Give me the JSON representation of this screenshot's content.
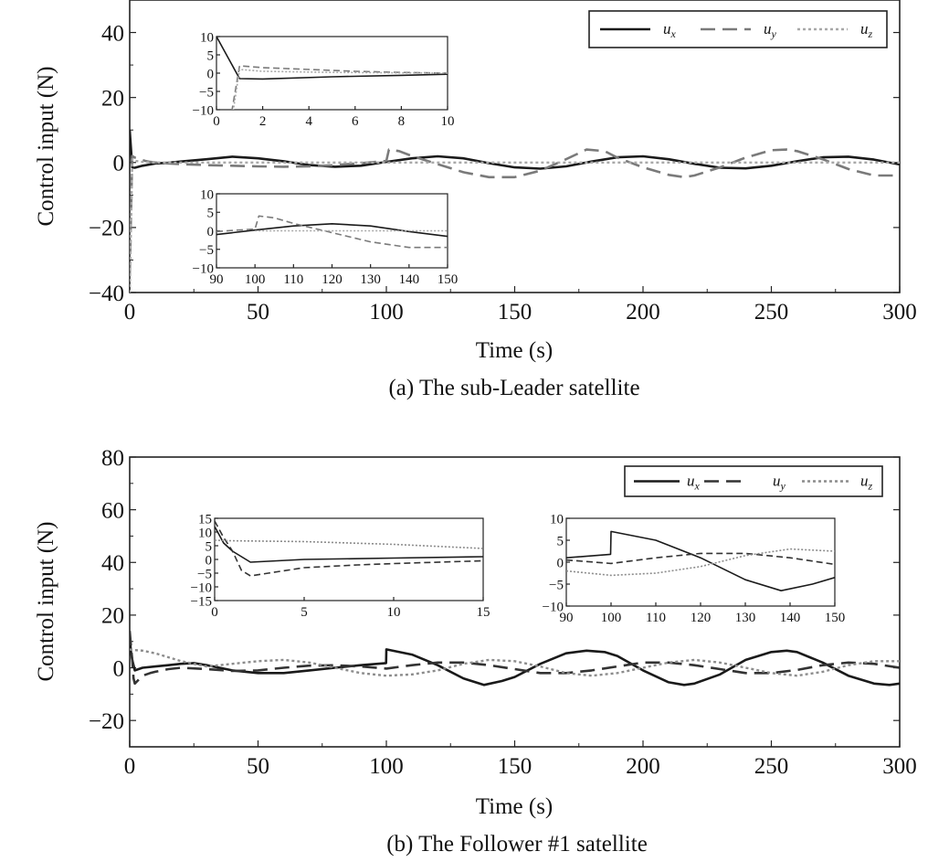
{
  "chart_data": [
    {
      "type": "line",
      "panel": "a",
      "caption": "(a) The sub-Leader satellite",
      "xlabel": "Time (s)",
      "ylabel": "Control input (N)",
      "xlim": [
        0,
        300
      ],
      "ylim": [
        -40,
        50
      ],
      "xticks": [
        0,
        50,
        100,
        150,
        200,
        250,
        300
      ],
      "yticks": [
        -40,
        -20,
        0,
        20,
        40
      ],
      "grid": false,
      "legend_position": "top-right",
      "series": [
        {
          "name": "u_x",
          "label_main": "u",
          "label_sub": "x",
          "style": "solid",
          "color": "#1a1a1a",
          "x": [
            0,
            1,
            2,
            5,
            8,
            10,
            15,
            20,
            30,
            40,
            50,
            60,
            70,
            80,
            90,
            100,
            110,
            120,
            130,
            140,
            150,
            160,
            170,
            180,
            190,
            200,
            210,
            220,
            230,
            240,
            250,
            260,
            270,
            280,
            290,
            300
          ],
          "y": [
            10,
            -1.5,
            -1.6,
            -1.0,
            -0.6,
            -0.3,
            -0.1,
            0.3,
            1.0,
            1.8,
            1.3,
            0.4,
            -0.8,
            -1.3,
            -1.0,
            0.2,
            1.3,
            1.9,
            1.3,
            -0.2,
            -1.5,
            -1.9,
            -1.2,
            0.3,
            1.6,
            1.9,
            1.0,
            -0.4,
            -1.6,
            -1.8,
            -1.0,
            0.4,
            1.6,
            1.8,
            0.9,
            -0.6
          ]
        },
        {
          "name": "u_y",
          "label_main": "u",
          "label_sub": "y",
          "style": "dashed",
          "color": "#7a7a7a",
          "x": [
            0,
            1,
            2,
            4,
            6,
            8,
            10,
            15,
            20,
            30,
            40,
            50,
            60,
            70,
            80,
            90,
            100,
            101,
            105,
            110,
            120,
            130,
            140,
            150,
            160,
            170,
            178,
            185,
            190,
            200,
            210,
            216,
            220,
            230,
            240,
            250,
            256,
            260,
            270,
            280,
            290,
            300
          ],
          "y": [
            -35,
            2.0,
            1.5,
            1.0,
            0.5,
            0.2,
            0.0,
            -0.3,
            -0.5,
            -0.8,
            -1.0,
            -1.2,
            -1.3,
            -1.2,
            -0.8,
            -0.2,
            0.5,
            4.0,
            3.5,
            2.0,
            -0.5,
            -3.0,
            -4.5,
            -4.5,
            -2.5,
            1.0,
            4.0,
            3.5,
            1.5,
            -1.5,
            -3.8,
            -4.5,
            -4.0,
            -1.5,
            1.5,
            3.8,
            4.0,
            3.5,
            1.0,
            -2.0,
            -4.0,
            -4.0
          ]
        },
        {
          "name": "u_z",
          "label_main": "u",
          "label_sub": "z",
          "style": "dotted",
          "color": "#a8a8a8",
          "x": [
            0,
            1,
            2,
            5,
            10,
            20,
            50,
            100,
            150,
            200,
            250,
            300
          ],
          "y": [
            -40,
            1.0,
            0.5,
            0.2,
            0.0,
            0.0,
            0.0,
            0.0,
            0.0,
            0.0,
            0.0,
            0.0
          ]
        }
      ],
      "insets": [
        {
          "xlim": [
            0,
            10
          ],
          "ylim": [
            -10,
            10
          ],
          "xticks": [
            0,
            2,
            4,
            6,
            8,
            10
          ],
          "yticks": [
            -10,
            -5,
            0,
            5,
            10
          ]
        },
        {
          "xlim": [
            90,
            150
          ],
          "ylim": [
            -10,
            10
          ],
          "xticks": [
            90,
            100,
            110,
            120,
            130,
            140,
            150
          ],
          "yticks": [
            -10,
            -5,
            0,
            5,
            10
          ]
        }
      ]
    },
    {
      "type": "line",
      "panel": "b",
      "caption": "(b) The Follower #1 satellite",
      "xlabel": "Time (s)",
      "ylabel": "Control input (N)",
      "xlim": [
        0,
        300
      ],
      "ylim": [
        -30,
        80
      ],
      "xticks": [
        0,
        50,
        100,
        150,
        200,
        250,
        300
      ],
      "yticks": [
        -20,
        0,
        20,
        40,
        60,
        80
      ],
      "grid": false,
      "legend_position": "top-right",
      "series": [
        {
          "name": "u_x",
          "label_main": "u",
          "label_sub": "x",
          "style": "solid",
          "color": "#1a1a1a",
          "x": [
            0,
            0.5,
            1,
            2,
            5,
            10,
            15,
            20,
            25,
            30,
            40,
            50,
            60,
            70,
            80,
            90,
            99.9,
            100,
            110,
            120,
            130,
            138,
            145,
            150,
            160,
            170,
            178,
            185,
            190,
            200,
            210,
            216,
            220,
            230,
            240,
            250,
            256,
            260,
            270,
            280,
            290,
            296,
            300
          ],
          "y": [
            12,
            6,
            3,
            -1.0,
            0.0,
            0.5,
            1.0,
            1.5,
            1.8,
            1.0,
            -1.0,
            -2.0,
            -2.0,
            -1.0,
            0.0,
            1.0,
            1.8,
            7.0,
            5.0,
            1.0,
            -4.0,
            -6.5,
            -5.0,
            -3.5,
            1.5,
            5.5,
            6.5,
            6.0,
            4.5,
            -1.0,
            -5.5,
            -6.5,
            -6.0,
            -2.5,
            3.0,
            6.0,
            6.5,
            6.0,
            2.0,
            -3.0,
            -6.0,
            -6.5,
            -6.0
          ]
        },
        {
          "name": "u_y",
          "label_main": "u",
          "label_sub": "y",
          "style": "dashed",
          "color": "#333333",
          "x": [
            0,
            0.5,
            1,
            1.5,
            2,
            3,
            5,
            8,
            10,
            15,
            20,
            30,
            40,
            50,
            60,
            70,
            80,
            90,
            100,
            110,
            120,
            130,
            140,
            150,
            160,
            170,
            180,
            190,
            200,
            210,
            220,
            230,
            240,
            250,
            260,
            270,
            280,
            290,
            300
          ],
          "y": [
            14,
            8,
            3,
            -4,
            -6,
            -5,
            -3,
            -2,
            -1.5,
            -0.5,
            0.0,
            -0.5,
            -1.2,
            -1.0,
            0.0,
            0.8,
            1.0,
            0.5,
            -0.3,
            1.0,
            2.0,
            2.0,
            1.0,
            -0.5,
            -2.0,
            -2.0,
            -1.0,
            0.5,
            2.0,
            2.0,
            1.0,
            -0.5,
            -2.0,
            -2.0,
            -0.8,
            1.0,
            2.0,
            1.5,
            0.0
          ]
        },
        {
          "name": "u_z",
          "label_main": "u",
          "label_sub": "z",
          "style": "dotted",
          "color": "#8c8c8c",
          "x": [
            0,
            1,
            5,
            10,
            15,
            20,
            30,
            40,
            50,
            60,
            70,
            80,
            90,
            100,
            110,
            120,
            130,
            140,
            150,
            160,
            170,
            180,
            190,
            200,
            210,
            220,
            230,
            240,
            250,
            260,
            270,
            280,
            290,
            300
          ],
          "y": [
            7.0,
            6.8,
            6.5,
            5.5,
            4.0,
            2.5,
            0.5,
            1.5,
            2.5,
            3.0,
            2.0,
            0.0,
            -2.0,
            -3.0,
            -2.5,
            -1.0,
            1.5,
            3.0,
            2.5,
            0.5,
            -2.0,
            -3.0,
            -2.0,
            0.0,
            2.0,
            3.0,
            2.0,
            0.0,
            -2.0,
            -3.0,
            -1.5,
            1.0,
            2.5,
            2.5
          ]
        }
      ],
      "insets": [
        {
          "xlim": [
            0,
            15
          ],
          "ylim": [
            -15,
            15
          ],
          "xticks": [
            0,
            5,
            10,
            15
          ],
          "yticks": [
            -15,
            -10,
            -5,
            0,
            5,
            10,
            15
          ]
        },
        {
          "xlim": [
            90,
            150
          ],
          "ylim": [
            -10,
            10
          ],
          "xticks": [
            90,
            100,
            110,
            120,
            130,
            140,
            150
          ],
          "yticks": [
            -10,
            -5,
            0,
            5,
            10
          ]
        }
      ]
    }
  ]
}
